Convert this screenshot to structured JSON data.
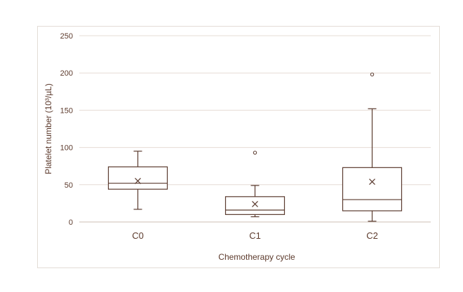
{
  "chart_data": {
    "type": "box",
    "xlabel": "Chemotherapy cycle",
    "ylabel": "Platelet number (10³/µL)",
    "ylim": [
      0,
      250
    ],
    "yticks": [
      0,
      50,
      100,
      150,
      200,
      250
    ],
    "grid": true,
    "legend": "none",
    "colors": {
      "line": "#5a3a2e",
      "grid": "#e6dcd5",
      "text": "#5c3a2c"
    },
    "categories": [
      "C0",
      "C1",
      "C2"
    ],
    "boxes": [
      {
        "category": "C0",
        "min": 17,
        "q1": 44,
        "median": 52,
        "q3": 74,
        "max": 95,
        "mean": 55,
        "outliers": []
      },
      {
        "category": "C1",
        "min": 7,
        "q1": 10,
        "median": 16,
        "q3": 34,
        "max": 49,
        "mean": 24,
        "outliers": [
          93
        ]
      },
      {
        "category": "C2",
        "min": 1,
        "q1": 15,
        "median": 30,
        "q3": 73,
        "max": 152,
        "mean": 54,
        "outliers": [
          198
        ]
      }
    ]
  }
}
